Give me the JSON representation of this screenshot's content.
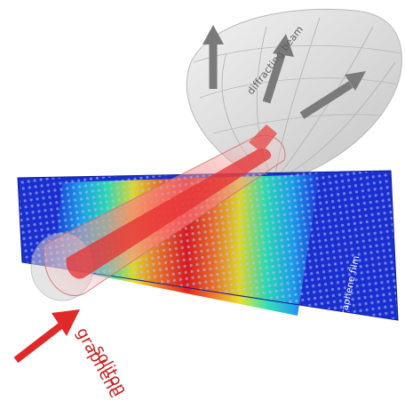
{
  "labels": {
    "diffracting_beam": "diffracting beam",
    "graphene_film": "graphene film",
    "graphene": "graphene",
    "soliton": "soliton"
  },
  "colors": {
    "sheet_blue": "#1a2fd0",
    "soliton_core": "#e02020",
    "beam_arrow": "#7a7a7a",
    "input_arrow": "#e02a2a",
    "cone": "#d8d8d8"
  }
}
